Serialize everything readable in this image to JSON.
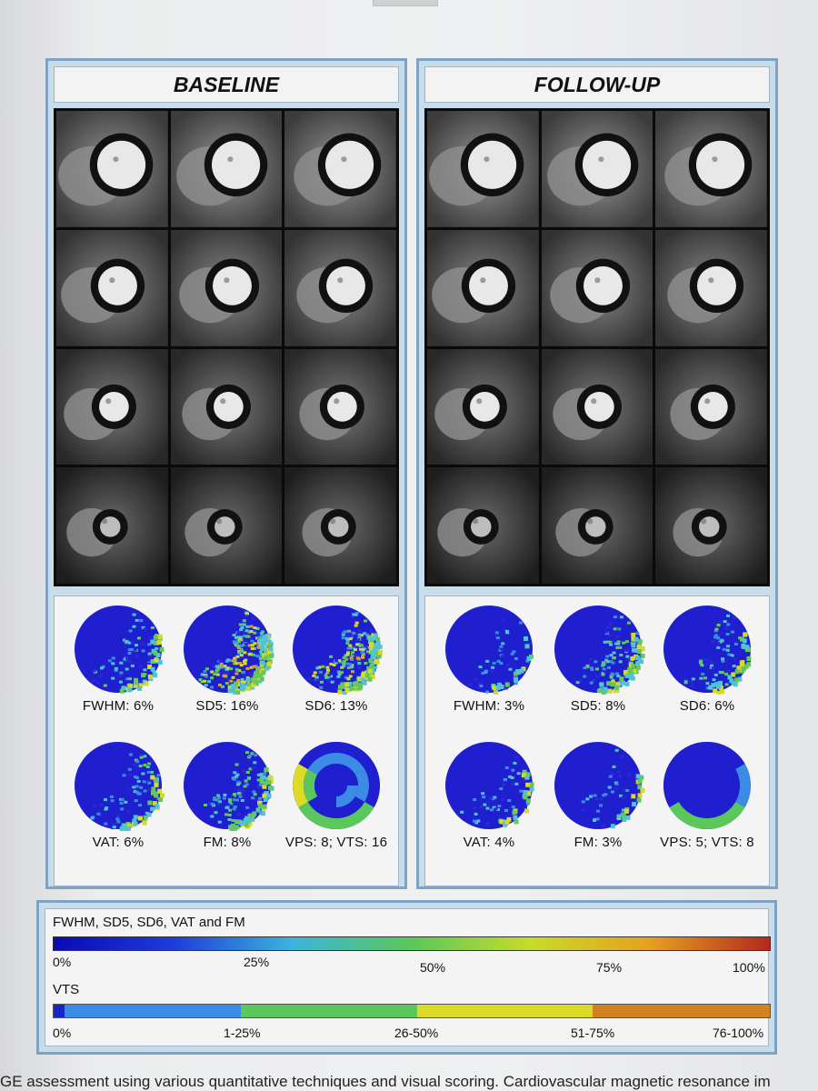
{
  "panels": {
    "left": {
      "title": "BASELINE"
    },
    "right": {
      "title": "FOLLOW-UP"
    }
  },
  "maps": {
    "left": [
      {
        "label": "FWHM: 6%"
      },
      {
        "label": "SD5: 16%"
      },
      {
        "label": "SD6: 13%"
      },
      {
        "label": "VAT: 6%"
      },
      {
        "label": "FM: 8%"
      },
      {
        "label": "VPS: 8; VTS: 16"
      }
    ],
    "right": [
      {
        "label": "FWHM: 3%"
      },
      {
        "label": "SD5: 8%"
      },
      {
        "label": "SD6: 6%"
      },
      {
        "label": "VAT: 4%"
      },
      {
        "label": "FM: 3%"
      },
      {
        "label": "VPS: 5; VTS: 8"
      }
    ]
  },
  "legend": {
    "continuous_title": "FWHM, SD5, SD6, VAT and FM",
    "continuous_ticks": [
      "0%",
      "25%",
      "50%",
      "75%",
      "100%"
    ],
    "vts_title": "VTS",
    "vts_ticks": [
      "0%",
      "1-25%",
      "26-50%",
      "51-75%",
      "76-100%"
    ],
    "colors": {
      "gradient": [
        "#0a0ab4",
        "#1e3cdc",
        "#3cb4dc",
        "#5ac85a",
        "#c8dc28",
        "#e6a01e",
        "#b4281e"
      ],
      "vts_segments": [
        "#1428c8",
        "#3c8ce6",
        "#5ac85a",
        "#dcdc28",
        "#d2821e"
      ]
    }
  },
  "caption": "GE assessment using various quantitative techniques and visual scoring. Cardiovascular magnetic resonance im"
}
